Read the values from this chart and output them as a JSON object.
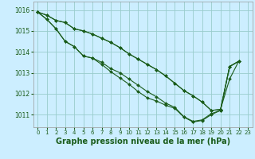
{
  "background_color": "#cceeff",
  "grid_color": "#99cccc",
  "line_color": "#1a5c1a",
  "marker_color": "#1a5c1a",
  "xlabel": "Graphe pression niveau de la mer (hPa)",
  "xlabel_fontsize": 7,
  "ylim": [
    1010.4,
    1016.4
  ],
  "xlim": [
    -0.5,
    23.5
  ],
  "yticks": [
    1011,
    1012,
    1013,
    1014,
    1015,
    1016
  ],
  "xticks": [
    0,
    1,
    2,
    3,
    4,
    5,
    6,
    7,
    8,
    9,
    10,
    11,
    12,
    13,
    14,
    15,
    16,
    17,
    18,
    19,
    20,
    21,
    22,
    23
  ],
  "tick_fontsize": 5.5,
  "series": [
    [
      1015.9,
      1015.75,
      1015.5,
      1015.4,
      1015.1,
      1015.0,
      1014.85,
      1014.65,
      1014.45,
      1014.2,
      1013.9,
      1013.65,
      1013.4,
      1013.15,
      1012.85,
      1012.5,
      1012.15,
      1011.9,
      1011.6,
      1011.2,
      1011.25,
      1013.3,
      1013.55,
      null
    ],
    [
      1015.9,
      1015.55,
      1015.1,
      1014.5,
      1014.25,
      1013.8,
      1013.7,
      1013.5,
      1013.2,
      1013.0,
      1012.7,
      1012.4,
      1012.1,
      1011.85,
      1011.55,
      1011.35,
      1010.9,
      1010.68,
      1010.75,
      1011.05,
      1011.2,
      1013.3,
      1013.55,
      null
    ],
    [
      1015.9,
      1015.55,
      1015.1,
      1014.5,
      1014.25,
      1013.8,
      1013.7,
      1013.4,
      1013.05,
      1012.75,
      1012.45,
      1012.1,
      1011.8,
      1011.65,
      1011.45,
      1011.3,
      1010.88,
      1010.65,
      1010.72,
      1011.0,
      1011.2,
      1013.3,
      1013.55,
      null
    ],
    [
      1015.9,
      1015.75,
      1015.5,
      1015.4,
      1015.1,
      1015.0,
      1014.85,
      1014.65,
      1014.45,
      1014.2,
      1013.9,
      1013.65,
      1013.4,
      1013.15,
      1012.85,
      1012.5,
      1012.15,
      1011.9,
      1011.6,
      1011.2,
      1011.25,
      1012.7,
      1013.55,
      null
    ]
  ]
}
